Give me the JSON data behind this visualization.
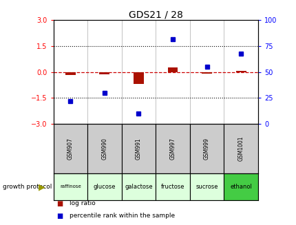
{
  "title": "GDS21 / 28",
  "samples": [
    "GSM907",
    "GSM990",
    "GSM991",
    "GSM997",
    "GSM999",
    "GSM1001"
  ],
  "protocols": [
    "raffinose",
    "glucose",
    "galactose",
    "fructose",
    "sucrose",
    "ethanol"
  ],
  "log_ratio": [
    -0.18,
    -0.12,
    -0.7,
    0.25,
    -0.08,
    0.07
  ],
  "percentile_rank": [
    22,
    30,
    10,
    82,
    55,
    68
  ],
  "ylim_left": [
    -3,
    3
  ],
  "ylim_right": [
    0,
    100
  ],
  "yticks_left": [
    -3,
    -1.5,
    0,
    1.5,
    3
  ],
  "yticks_right": [
    0,
    25,
    50,
    75,
    100
  ],
  "hline_dotted": [
    1.5,
    -1.5
  ],
  "bar_color": "#aa1100",
  "dot_color": "#0000cc",
  "gsm_bg": "#cccccc",
  "prot_colors": [
    "#ddffdd",
    "#ddffdd",
    "#ddffdd",
    "#ddffdd",
    "#ddffdd",
    "#44cc44"
  ],
  "growth_protocol_label": "growth protocol",
  "legend_bar_label": "log ratio",
  "legend_dot_label": "percentile rank within the sample",
  "title_fontsize": 10,
  "tick_fontsize": 7,
  "bar_width": 0.3
}
